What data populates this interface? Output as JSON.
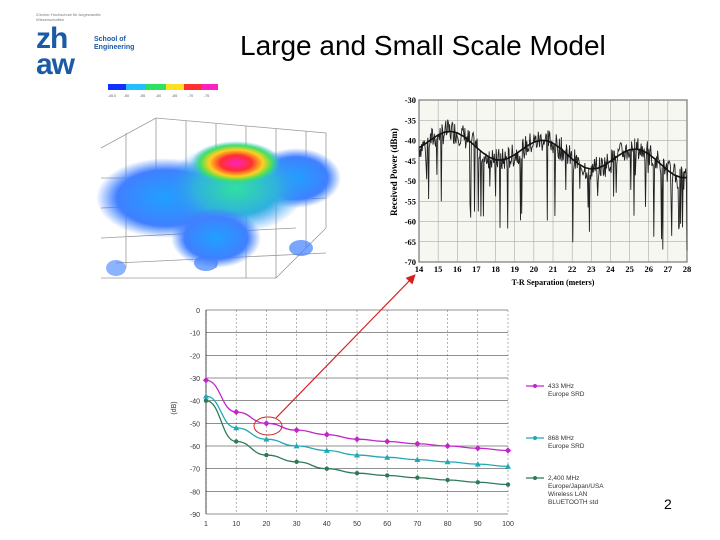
{
  "slide": {
    "title": "Large and Small Scale Model",
    "page_number": "2"
  },
  "logo": {
    "tagline": "Zürcher Hochschule für Angewandte Wissenschaften",
    "letters_top": "zh",
    "letters_bottom": "aw",
    "school_line1": "School of",
    "school_line2": "Engineering"
  },
  "colors": {
    "logo_blue": "#1a5aa6",
    "arrow_red": "#d42020",
    "series_magenta": "#c026c8",
    "series_teal": "#22a8b4",
    "series_green": "#2e7a58"
  },
  "chart_data": [
    {
      "type": "line",
      "xlabel": "T-R Separation (meters)",
      "ylabel": "Received Power (dBm)",
      "x_ticks": [
        14,
        15,
        16,
        17,
        18,
        19,
        20,
        21,
        22,
        23,
        24,
        25,
        26,
        27,
        28
      ],
      "y_ticks": [
        -30,
        -35,
        -40,
        -45,
        -50,
        -55,
        -60,
        -65,
        -70
      ],
      "xlim": [
        14,
        28
      ],
      "ylim": [
        -70,
        -30
      ],
      "grid": true
    },
    {
      "type": "line",
      "x": [
        1,
        10,
        20,
        30,
        40,
        50,
        60,
        70,
        80,
        90,
        100
      ],
      "x_tick_labels": [
        "1",
        "10",
        "20",
        "30",
        "40",
        "50",
        "60",
        "70",
        "80",
        "90",
        "100"
      ],
      "y_tick_labels": [
        "0",
        "-10",
        "-20",
        "-30",
        "-40",
        "-50",
        "-60",
        "-70",
        "-80",
        "-90"
      ],
      "ylim": [
        -90,
        0
      ],
      "grid": true,
      "legend_position": "right",
      "series": [
        {
          "name": "433 MHz Europe SRD",
          "values": [
            -31,
            -45,
            -50,
            -53,
            -55,
            -57,
            -58,
            -59,
            -60,
            -61,
            -62
          ]
        },
        {
          "name": "868 MHz Europe SRD",
          "values": [
            -38,
            -52,
            -57,
            -60,
            -62,
            -64,
            -65,
            -66,
            -67,
            -68,
            -69
          ]
        },
        {
          "name": "2,400 MHz Europe/Japan/USA Wireless LAN BLUETOOTH std",
          "values": [
            -40,
            -58,
            -64,
            -67,
            -70,
            -72,
            -73,
            -74,
            -75,
            -76,
            -77
          ]
        }
      ]
    }
  ]
}
